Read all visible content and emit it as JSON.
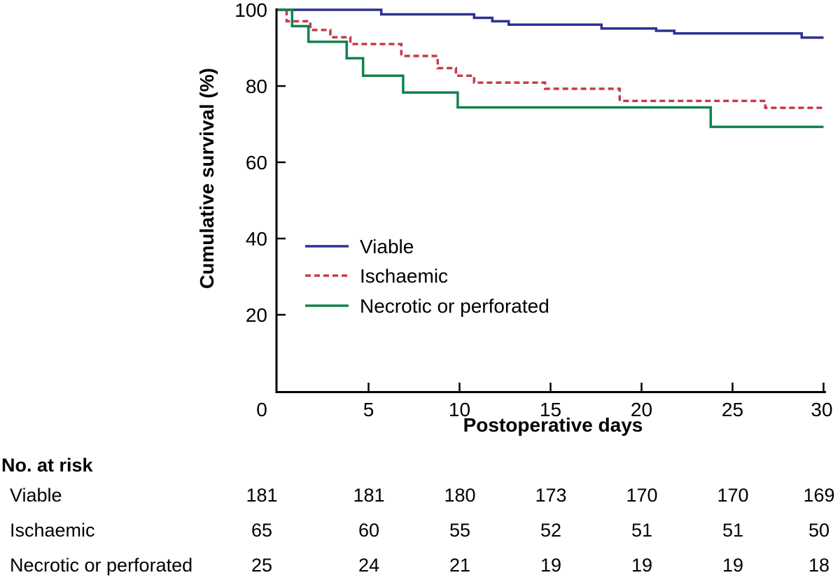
{
  "chart_data": {
    "type": "line",
    "variant": "kaplan-meier-step",
    "title": "",
    "xlabel": "Postoperative days",
    "ylabel": "Cumulative survival (%)",
    "xlim": [
      0,
      30
    ],
    "ylim": [
      0,
      100
    ],
    "grid": false,
    "x_ticks": [
      0,
      5,
      10,
      15,
      20,
      25,
      30
    ],
    "x_tick_labels": [
      "0",
      "5",
      "10",
      "15",
      "20",
      "25",
      "30"
    ],
    "y_ticks": [
      100,
      80,
      60,
      40,
      20
    ],
    "y_tick_labels": [
      "100",
      "80",
      "60",
      "40",
      "20"
    ],
    "legend_position": "inside-lower-left",
    "legend": [
      "Viable",
      "Ischaemic",
      "Necrotic or perforated"
    ],
    "series": [
      {
        "name": "Viable",
        "color": "#2e3192",
        "style": "solid",
        "steps": [
          [
            0,
            100
          ],
          [
            5.7,
            98.8
          ],
          [
            10.8,
            97.9
          ],
          [
            11.8,
            97.0
          ],
          [
            12.7,
            96.1
          ],
          [
            17.8,
            95.1
          ],
          [
            20.8,
            94.5
          ],
          [
            21.8,
            93.8
          ],
          [
            28.8,
            92.7
          ]
        ],
        "end_day": 30,
        "end_value": 92.7
      },
      {
        "name": "Ischaemic",
        "color": "#c53b4b",
        "style": "dashed",
        "steps": [
          [
            0,
            100
          ],
          [
            0.5,
            97.0
          ],
          [
            1.8,
            94.7
          ],
          [
            2.9,
            92.8
          ],
          [
            4.0,
            91.0
          ],
          [
            6.8,
            87.9
          ],
          [
            8.8,
            84.7
          ],
          [
            9.8,
            82.7
          ],
          [
            10.8,
            80.9
          ],
          [
            14.7,
            79.3
          ],
          [
            18.8,
            76.1
          ],
          [
            26.8,
            74.3
          ]
        ],
        "end_day": 30,
        "end_value": 74.3
      },
      {
        "name": "Necrotic or perforated",
        "color": "#12824e",
        "style": "solid",
        "steps": [
          [
            0,
            100
          ],
          [
            0.8,
            95.7
          ],
          [
            1.7,
            91.6
          ],
          [
            3.8,
            87.3
          ],
          [
            4.7,
            82.7
          ],
          [
            6.9,
            78.3
          ],
          [
            9.9,
            74.4
          ],
          [
            23.8,
            69.3
          ]
        ],
        "end_day": 30,
        "end_value": 69.3
      }
    ]
  },
  "risk_table": {
    "title": "No. at risk",
    "days": [
      0,
      5,
      10,
      15,
      20,
      25,
      30
    ],
    "rows": [
      {
        "label": "Viable",
        "values": [
          181,
          181,
          180,
          173,
          170,
          170,
          169
        ]
      },
      {
        "label": "Ischaemic",
        "values": [
          65,
          60,
          55,
          52,
          51,
          51,
          50
        ]
      },
      {
        "label": "Necrotic or perforated",
        "values": [
          25,
          24,
          21,
          19,
          19,
          19,
          18
        ]
      }
    ]
  }
}
